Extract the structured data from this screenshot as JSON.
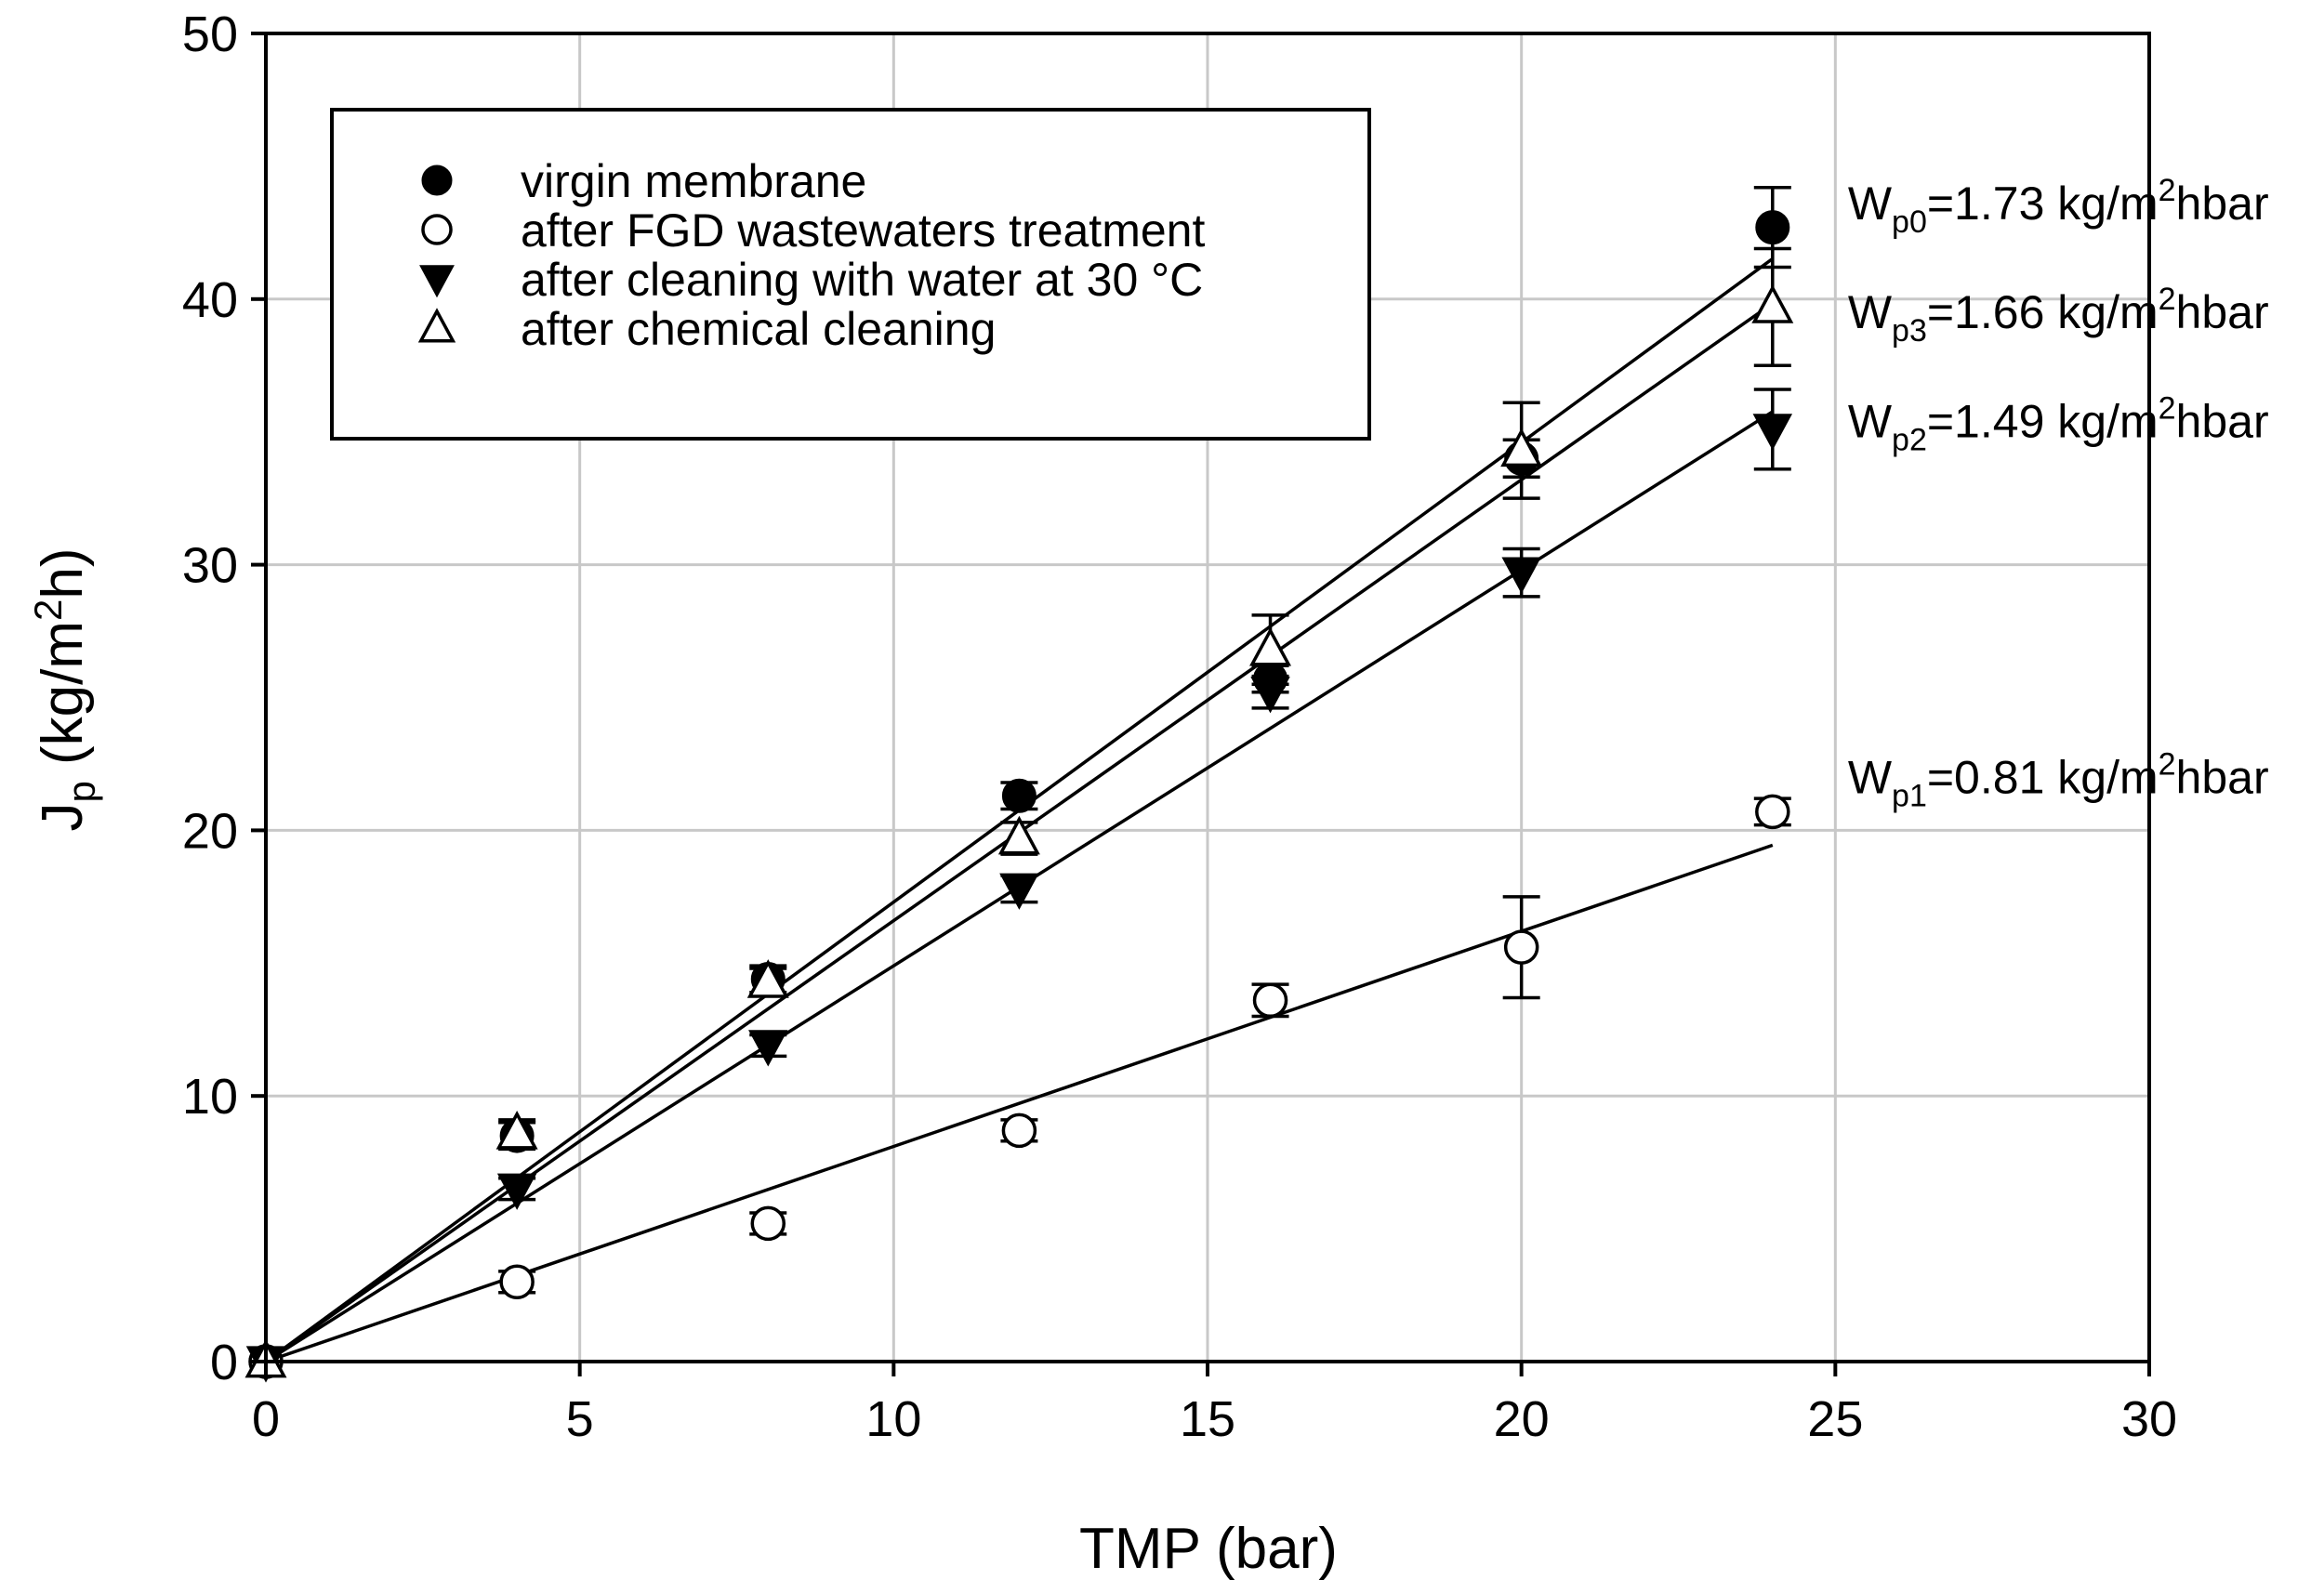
{
  "chart_data": {
    "type": "scatter",
    "title": "",
    "xlabel": "TMP (bar)",
    "ylabel": {
      "main": "J",
      "sub": "p",
      "rest_before_sup": " (kg/m",
      "sup": "2",
      "rest_after_sup": "h)"
    },
    "xlim": [
      0,
      30
    ],
    "ylim": [
      0,
      50
    ],
    "x_ticks": [
      0,
      5,
      10,
      15,
      20,
      25,
      30
    ],
    "y_ticks": [
      0,
      10,
      20,
      30,
      40,
      50
    ],
    "grid": true,
    "legend_position": "top-left",
    "series": [
      {
        "name": "virgin membrane",
        "marker": "filled-circle",
        "x": [
          0,
          4,
          8,
          12,
          16,
          20,
          24
        ],
        "y": [
          0,
          8.5,
          14.4,
          21.3,
          25.7,
          34.0,
          42.7
        ],
        "err": [
          0,
          0.5,
          0.5,
          0.5,
          0.5,
          0.7,
          1.5
        ],
        "fit_slope": 1.73
      },
      {
        "name": "after FGD wastewaters treatment",
        "marker": "open-circle",
        "x": [
          0,
          4,
          8,
          12,
          16,
          20,
          24
        ],
        "y": [
          0,
          3.0,
          5.2,
          8.7,
          13.6,
          15.6,
          20.7
        ],
        "err": [
          0,
          0.4,
          0.4,
          0.4,
          0.6,
          1.9,
          0.5
        ],
        "fit_slope": 0.81
      },
      {
        "name": "after cleaning with water at 30 °C",
        "marker": "filled-triangle-down",
        "x": [
          0,
          4,
          8,
          12,
          16,
          20,
          24
        ],
        "y": [
          0,
          6.5,
          11.9,
          17.8,
          25.2,
          29.7,
          35.1
        ],
        "err": [
          0,
          0.4,
          0.4,
          0.5,
          0.6,
          0.9,
          1.5
        ],
        "fit_slope": 1.49
      },
      {
        "name": "after chemical cleaning",
        "marker": "open-triangle-up",
        "x": [
          0,
          4,
          8,
          12,
          16,
          20,
          24
        ],
        "y": [
          0,
          8.6,
          14.3,
          19.7,
          26.8,
          34.3,
          39.7
        ],
        "err": [
          0,
          0.5,
          0.5,
          0.6,
          1.3,
          1.8,
          2.2
        ],
        "fit_slope": 1.66
      }
    ],
    "annotations": [
      {
        "label": "W",
        "sub": "p0",
        "value": "=1.73 kg/m",
        "sup": "2",
        "unit_tail": "hbar",
        "anchor_x": 25.2,
        "anchor_y": 43.0
      },
      {
        "label": "W",
        "sub": "p3",
        "value": "=1.66 kg/m",
        "sup": "2",
        "unit_tail": "hbar",
        "anchor_x": 25.2,
        "anchor_y": 38.9
      },
      {
        "label": "W",
        "sub": "p2",
        "value": "=1.49 kg/m",
        "sup": "2",
        "unit_tail": "hbar",
        "anchor_x": 25.2,
        "anchor_y": 34.8
      },
      {
        "label": "W",
        "sub": "p1",
        "value": "=0.81 kg/m",
        "sup": "2",
        "unit_tail": "hbar",
        "anchor_x": 25.2,
        "anchor_y": 21.4
      }
    ]
  }
}
